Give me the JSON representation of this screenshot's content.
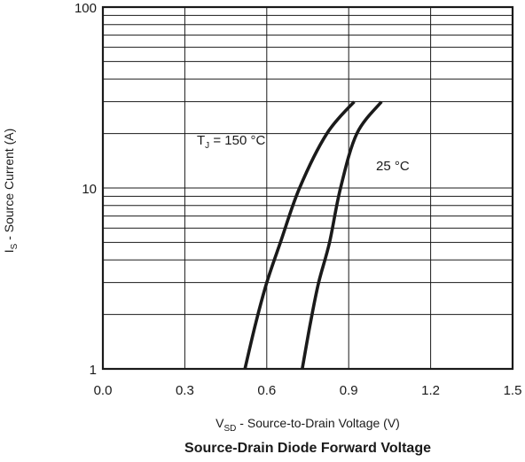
{
  "chart_data": {
    "type": "line",
    "title": "Source-Drain Diode Forward Voltage",
    "xlabel": {
      "main": "V",
      "sub": "SD",
      "rest": " - Source-to-Drain Voltage (V)"
    },
    "ylabel": {
      "main": "I",
      "sub": "S",
      "rest": " - Source Current (A)"
    },
    "xlim": [
      0.0,
      1.5
    ],
    "ylim": [
      1,
      100
    ],
    "yscale": "log",
    "grid": true,
    "x_ticks": [
      "0.0",
      "0.3",
      "0.6",
      "0.9",
      "1.2",
      "1.5"
    ],
    "y_ticks": [
      "1",
      "10",
      "100"
    ],
    "series": [
      {
        "name": {
          "main": "T",
          "sub": "J",
          "rest": " = 150 °C"
        },
        "x": [
          0.52,
          0.56,
          0.6,
          0.65,
          0.72,
          0.82,
          0.92
        ],
        "y": [
          1,
          1.8,
          3,
          5,
          10,
          20,
          30
        ]
      },
      {
        "name": {
          "main": "25 °C",
          "sub": "",
          "rest": ""
        },
        "x": [
          0.73,
          0.76,
          0.79,
          0.83,
          0.87,
          0.93,
          1.02
        ],
        "y": [
          1,
          1.8,
          3,
          5,
          10,
          20,
          30
        ]
      }
    ]
  }
}
